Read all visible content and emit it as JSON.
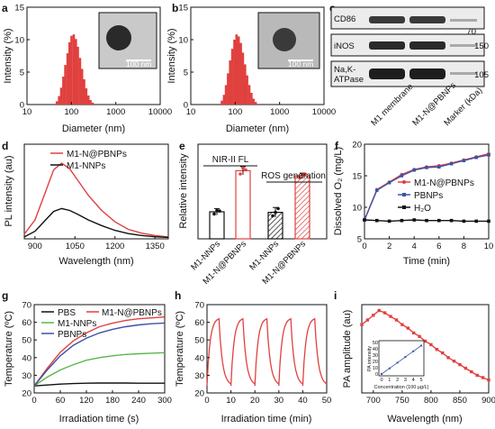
{
  "colors": {
    "red": "#e0413f",
    "blue": "#3b53a4",
    "green": "#5bb648",
    "black": "#111111"
  },
  "chart_data": [
    {
      "panel": "a",
      "type": "bar",
      "xlabel": "Diameter (nm)",
      "ylabel": "Intensity (%)",
      "xscale": "log",
      "xlim": [
        10,
        10000
      ],
      "ylim": [
        0,
        15
      ],
      "xticks": [
        "10",
        "100",
        "1000",
        "10000"
      ],
      "yticks": [
        "0",
        "5",
        "10",
        "15"
      ],
      "x": [
        47,
        53,
        59,
        66,
        73,
        82,
        91,
        101,
        113,
        126,
        140,
        156,
        174,
        194,
        216,
        241,
        269,
        300
      ],
      "values": [
        0.5,
        1.3,
        2.6,
        4.3,
        6.1,
        7.9,
        9.6,
        10.6,
        10.8,
        10.1,
        8.9,
        7.2,
        5.5,
        3.9,
        2.5,
        1.4,
        0.7,
        0.3
      ],
      "inset_scale": "100 nm"
    },
    {
      "panel": "b",
      "type": "bar",
      "xlabel": "Diameter (nm)",
      "ylabel": "Intensity (%)",
      "xscale": "log",
      "xlim": [
        10,
        10000
      ],
      "ylim": [
        0,
        15
      ],
      "xticks": [
        "10",
        "100",
        "1000",
        "10000"
      ],
      "yticks": [
        "0",
        "5",
        "10",
        "15"
      ],
      "x": [
        50,
        56,
        62,
        69,
        77,
        86,
        96,
        107,
        120,
        134,
        149,
        167,
        186,
        208,
        232,
        259,
        289
      ],
      "values": [
        0.6,
        1.5,
        3.0,
        4.8,
        6.8,
        8.6,
        10.0,
        10.8,
        10.5,
        9.5,
        8.0,
        6.2,
        4.5,
        3.0,
        1.8,
        0.9,
        0.4
      ],
      "inset_scale": "100 nm"
    },
    {
      "panel": "c",
      "type": "blot",
      "rows": [
        "CD86",
        "iNOS",
        "Na,K-\nATPase"
      ],
      "lanes": [
        "M1 membrane",
        "M1-N@PBNPs",
        "Marker (kDa)"
      ],
      "markers": [
        "70",
        "150",
        "105"
      ]
    },
    {
      "panel": "d",
      "type": "line",
      "xlabel": "Wavelength (nm)",
      "ylabel": "PL intensity (au)",
      "xlim": [
        860,
        1400
      ],
      "xticks": [
        "900",
        "1050",
        "1200",
        "1350"
      ],
      "x": [
        860,
        900,
        940,
        970,
        1000,
        1030,
        1060,
        1100,
        1150,
        1200,
        1250,
        1300,
        1350,
        1400
      ],
      "series": [
        {
          "name": "M1-N@PBNPs",
          "color": "#e0413f",
          "values": [
            50,
            200,
            500,
            730,
            800,
            740,
            620,
            460,
            300,
            180,
            100,
            60,
            35,
            20
          ]
        },
        {
          "name": "M1-NNPs",
          "color": "#111111",
          "values": [
            20,
            80,
            200,
            290,
            320,
            300,
            260,
            200,
            140,
            90,
            55,
            35,
            22,
            15
          ]
        }
      ]
    },
    {
      "panel": "e",
      "type": "bar",
      "ylabel": "Relative intensity",
      "ylim": [
        0,
        3.5
      ],
      "categories": [
        "M1-NNPs",
        "M1-N@PBNPs",
        "M1-NNPs",
        "M1-N@PBNPs"
      ],
      "values": [
        1.0,
        2.52,
        0.98,
        2.33
      ],
      "errors": [
        0.12,
        0.15,
        0.18,
        0.1
      ],
      "points": [
        [
          0.92,
          1.05,
          1.03
        ],
        [
          2.4,
          2.62,
          2.55
        ],
        [
          0.85,
          0.98,
          1.12
        ],
        [
          2.26,
          2.36,
          2.4
        ]
      ],
      "groups": [
        "NIR-II FL",
        "ROS generation"
      ]
    },
    {
      "panel": "f",
      "type": "line",
      "xlabel": "Time (min)",
      "ylabel": "Dissolved O₂ (mg/L)",
      "xlim": [
        0,
        10
      ],
      "ylim": [
        5,
        20
      ],
      "xticks": [
        "0",
        "2",
        "4",
        "6",
        "8",
        "10"
      ],
      "yticks": [
        "5",
        "10",
        "15",
        "20"
      ],
      "x": [
        0,
        1,
        2,
        3,
        4,
        5,
        6,
        7,
        8,
        9,
        10
      ],
      "series": [
        {
          "name": "M1-N@PBNPs",
          "color": "#e0413f",
          "values": [
            8.0,
            12.8,
            14.0,
            15.2,
            16.0,
            16.4,
            16.6,
            17.0,
            17.5,
            18.0,
            18.5
          ]
        },
        {
          "name": "PBNPs",
          "color": "#3b53a4",
          "values": [
            8.0,
            12.7,
            13.9,
            15.0,
            15.9,
            16.3,
            16.4,
            16.9,
            17.4,
            17.9,
            18.3
          ]
        },
        {
          "name": "H₂O",
          "color": "#111111",
          "values": [
            8.0,
            7.9,
            7.8,
            7.9,
            8.0,
            7.9,
            7.9,
            7.9,
            7.8,
            7.8,
            7.8
          ]
        }
      ]
    },
    {
      "panel": "g",
      "type": "line",
      "xlabel": "Irradiation time (s)",
      "ylabel": "Temperature (ºC)",
      "xlim": [
        0,
        300
      ],
      "ylim": [
        20,
        70
      ],
      "xticks": [
        "0",
        "60",
        "120",
        "180",
        "240",
        "300"
      ],
      "yticks": [
        "20",
        "30",
        "40",
        "50",
        "60",
        "70"
      ],
      "x": [
        0,
        30,
        60,
        90,
        120,
        150,
        180,
        210,
        240,
        270,
        300
      ],
      "series": [
        {
          "name": "PBS",
          "color": "#111111",
          "values": [
            24,
            24.5,
            25,
            25.3,
            25.5,
            25.6,
            25.6,
            25.6,
            25.5,
            25.5,
            25.5
          ]
        },
        {
          "name": "M1-N@PBNPs",
          "color": "#e0413f",
          "values": [
            24,
            34,
            43,
            49.5,
            54,
            57.5,
            59.5,
            61,
            62,
            62.5,
            63
          ]
        },
        {
          "name": "M1-NNPs",
          "color": "#5bb648",
          "values": [
            24,
            29,
            33,
            36,
            38.5,
            40,
            41,
            41.8,
            42.2,
            42.5,
            42.8
          ]
        },
        {
          "name": "PBNPs",
          "color": "#3b53a4",
          "values": [
            24,
            33,
            41,
            47,
            51,
            54,
            56,
            57.5,
            58.5,
            59.2,
            59.6
          ]
        }
      ]
    },
    {
      "panel": "h",
      "type": "line",
      "xlabel": "Irradiation time (min)",
      "ylabel": "Temperature (ºC)",
      "xlim": [
        0,
        50
      ],
      "ylim": [
        20,
        70
      ],
      "xticks": [
        "0",
        "10",
        "20",
        "30",
        "40",
        "50"
      ],
      "yticks": [
        "20",
        "30",
        "40",
        "50",
        "60",
        "70"
      ],
      "cycles": 5,
      "cycle_min": 10,
      "t_min": 24,
      "t_max": 62
    },
    {
      "panel": "i",
      "type": "line",
      "xlabel": "Wavelength (nm)",
      "ylabel": "PA amplitude (au)",
      "xlim": [
        680,
        900
      ],
      "xticks": [
        "700",
        "750",
        "800",
        "850",
        "900"
      ],
      "x": [
        680,
        690,
        700,
        710,
        720,
        730,
        740,
        750,
        760,
        770,
        780,
        790,
        800,
        810,
        820,
        830,
        840,
        850,
        860,
        870,
        880,
        890,
        900
      ],
      "values": [
        0.88,
        0.92,
        0.96,
        1.0,
        0.98,
        0.95,
        0.92,
        0.88,
        0.85,
        0.81,
        0.78,
        0.74,
        0.71,
        0.67,
        0.64,
        0.6,
        0.57,
        0.54,
        0.51,
        0.48,
        0.45,
        0.43,
        0.41
      ],
      "inset": {
        "xlabel": "Concentration (100 μg/L)",
        "ylabel": "PA intensity",
        "xticks": [
          "0",
          "1",
          "2",
          "3",
          "4",
          "5"
        ],
        "yticks": [
          "0",
          "10",
          "20",
          "30",
          "40",
          "50"
        ],
        "x": [
          0,
          1,
          2,
          3,
          4,
          5
        ],
        "values": [
          0,
          9,
          18,
          27,
          36,
          45
        ]
      }
    }
  ]
}
